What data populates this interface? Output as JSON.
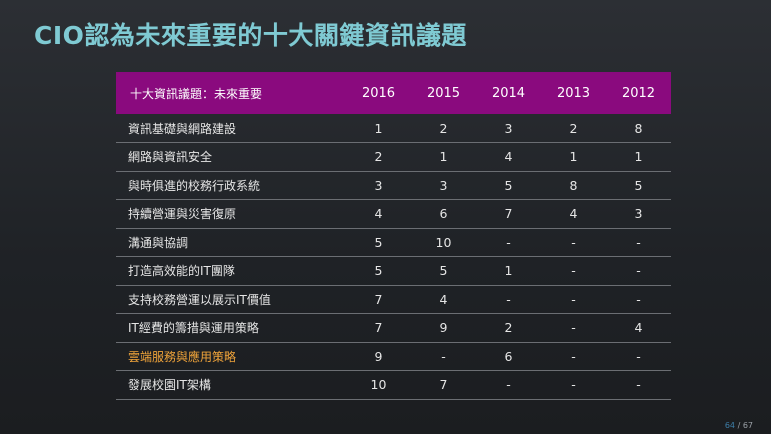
{
  "title": "CIO認為未來重要的十大關鍵資訊議題",
  "table": {
    "headers": [
      "十大資訊議題：未來重要",
      "2016",
      "2015",
      "2014",
      "2013",
      "2012"
    ],
    "rows": [
      {
        "label": "資訊基礎與網路建設",
        "values": [
          "1",
          "2",
          "3",
          "2",
          "8"
        ]
      },
      {
        "label": "網路與資訊安全",
        "values": [
          "2",
          "1",
          "4",
          "1",
          "1"
        ]
      },
      {
        "label": "與時俱進的校務行政系統",
        "values": [
          "3",
          "3",
          "5",
          "8",
          "5"
        ]
      },
      {
        "label": "持續營運與災害復原",
        "values": [
          "4",
          "6",
          "7",
          "4",
          "3"
        ]
      },
      {
        "label": "溝通與協調",
        "values": [
          "5",
          "10",
          "-",
          "-",
          "-"
        ]
      },
      {
        "label": "打造高效能的IT團隊",
        "values": [
          "5",
          "5",
          "1",
          "-",
          "-"
        ]
      },
      {
        "label": "支持校務營運以展示IT價值",
        "values": [
          "7",
          "4",
          "-",
          "-",
          "-"
        ]
      },
      {
        "label": "IT經費的籌措與運用策略",
        "values": [
          "7",
          "9",
          "2",
          "-",
          "4"
        ]
      },
      {
        "label": "雲端服務與應用策略",
        "values": [
          "9",
          "-",
          "6",
          "-",
          "-"
        ],
        "highlight": true
      },
      {
        "label": "發展校園IT架構",
        "values": [
          "10",
          "7",
          "-",
          "-",
          "-"
        ]
      }
    ]
  },
  "page": {
    "current": "64",
    "separator": " / ",
    "total": "67"
  },
  "colors": {
    "title": "#7fcad3",
    "header_bg": "#8a0a7e",
    "highlight_text": "#f0a43a",
    "background": "#24272b"
  }
}
